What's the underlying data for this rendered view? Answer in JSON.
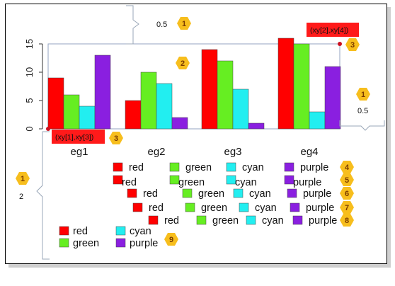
{
  "chart_data": {
    "type": "bar",
    "categories": [
      "eg1",
      "eg2",
      "eg3",
      "eg4"
    ],
    "series": [
      {
        "name": "red",
        "values": [
          9,
          5,
          14,
          16
        ]
      },
      {
        "name": "green",
        "values": [
          6,
          10,
          12,
          15
        ]
      },
      {
        "name": "cyan",
        "values": [
          4,
          8,
          7,
          3
        ]
      },
      {
        "name": "purple",
        "values": [
          13,
          2,
          1,
          11
        ]
      }
    ],
    "yticks": [
      "0",
      "5",
      "10",
      "15"
    ],
    "ylim": [
      0,
      16
    ],
    "colors": [
      "#ff0000",
      "#66ee22",
      "#22eef0",
      "#8a1fe0"
    ],
    "legends": [
      {
        "badge": "4",
        "labels": [
          "red",
          "green",
          "cyan",
          "purple"
        ]
      },
      {
        "badge": "5",
        "labels": [
          "red",
          "green",
          "cyan",
          "purple"
        ]
      },
      {
        "badge": "6",
        "labels": [
          "red",
          "green",
          "cyan",
          "purple"
        ]
      },
      {
        "badge": "7",
        "labels": [
          "red",
          "green",
          "cyan",
          "purple"
        ]
      },
      {
        "badge": "8",
        "labels": [
          "red",
          "green",
          "cyan",
          "purple"
        ]
      },
      {
        "badge": "9",
        "labels": [
          "red",
          "cyan",
          "green",
          "purple"
        ]
      }
    ]
  },
  "annotations": {
    "top_inset": "0.5",
    "right_inset": "0.5",
    "left_inset": "2",
    "coord_top_right": "(xy[2],xy[4])",
    "coord_bottom_left": "(xy[1],xy[3])",
    "badges": {
      "top": "1",
      "bars": "2",
      "top_right": "3",
      "right": "1",
      "bottom_left": "3",
      "left": "1"
    }
  },
  "colors": {
    "badge": "#f7be1d",
    "red_label": "#ff1a1a",
    "bracket": "#9aa7b8"
  }
}
